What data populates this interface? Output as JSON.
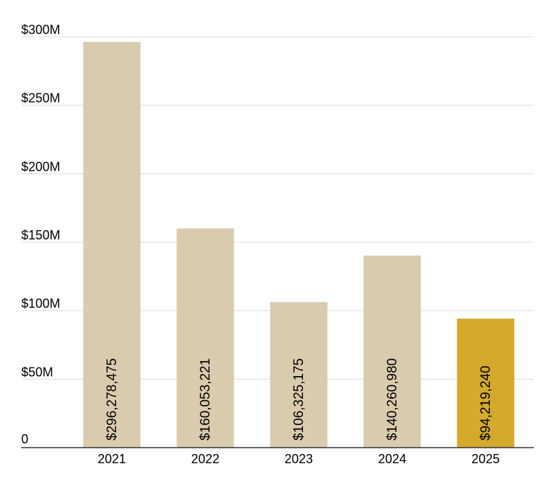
{
  "chart_data": {
    "type": "bar",
    "categories": [
      "2021",
      "2022",
      "2023",
      "2024",
      "2025"
    ],
    "values": [
      296278475,
      160053221,
      106325175,
      140260980,
      94219240
    ],
    "value_labels": [
      "$296,278,475",
      "$160,053,221",
      "$106,325,175",
      "$140,260,980",
      "$94,219,240"
    ],
    "ylim": [
      0,
      300000000
    ],
    "yticks": [
      0,
      50000000,
      100000000,
      150000000,
      200000000,
      250000000,
      300000000
    ],
    "ytick_labels": [
      "0",
      "$50M",
      "$100M",
      "$150M",
      "$200M",
      "$250M",
      "$300M"
    ],
    "grid": true,
    "colors": {
      "bar": "#d9cbae",
      "highlight": "#d4a92c",
      "grid": "#dcdcdc",
      "axis": "#333333"
    },
    "highlight_index": 4
  }
}
